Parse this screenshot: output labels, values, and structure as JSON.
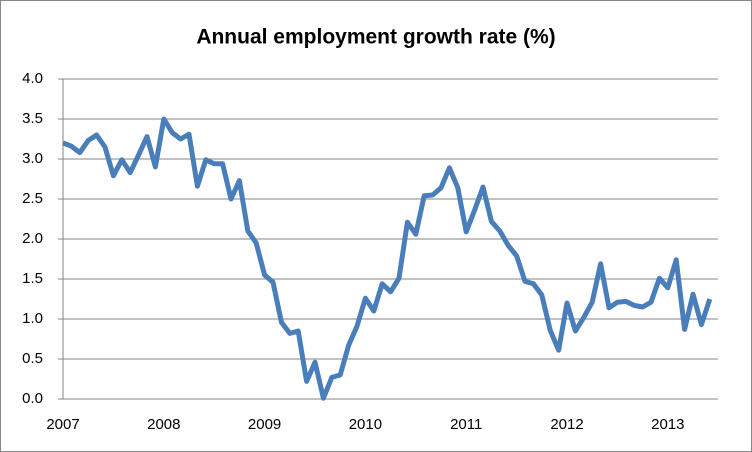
{
  "chart_data": {
    "type": "line",
    "title": "Annual employment growth rate (%)",
    "categories": [
      "2007",
      null,
      null,
      null,
      null,
      null,
      null,
      null,
      null,
      null,
      null,
      null,
      "2008",
      null,
      null,
      null,
      null,
      null,
      null,
      null,
      null,
      null,
      null,
      null,
      "2009",
      null,
      null,
      null,
      null,
      null,
      null,
      null,
      null,
      null,
      null,
      null,
      "2010",
      null,
      null,
      null,
      null,
      null,
      null,
      null,
      null,
      null,
      null,
      null,
      "2011",
      null,
      null,
      null,
      null,
      null,
      null,
      null,
      null,
      null,
      null,
      null,
      "2012",
      null,
      null,
      null,
      null,
      null,
      null,
      null,
      null,
      null,
      null,
      null,
      "2013",
      null,
      null,
      null,
      null,
      null
    ],
    "values": [
      3.2,
      3.16,
      3.08,
      3.23,
      3.3,
      3.15,
      2.79,
      2.99,
      2.83,
      3.05,
      3.28,
      2.9,
      3.5,
      3.33,
      3.25,
      3.31,
      2.66,
      2.99,
      2.94,
      2.94,
      2.5,
      2.73,
      2.1,
      1.95,
      1.55,
      1.46,
      0.96,
      0.82,
      0.85,
      0.22,
      0.46,
      0.01,
      0.27,
      0.3,
      0.67,
      0.91,
      1.26,
      1.1,
      1.44,
      1.34,
      1.51,
      2.21,
      2.06,
      2.54,
      2.55,
      2.64,
      2.89,
      2.64,
      2.09,
      2.36,
      2.65,
      2.22,
      2.1,
      1.92,
      1.79,
      1.47,
      1.44,
      1.3,
      0.86,
      0.61,
      1.2,
      0.85,
      1.02,
      1.21,
      1.69,
      1.14,
      1.21,
      1.22,
      1.17,
      1.15,
      1.21,
      1.51,
      1.39,
      1.74,
      0.87,
      1.31,
      0.93,
      1.25
    ],
    "color": "#4a7ebb",
    "ylim": [
      0,
      4
    ],
    "yticks": [
      {
        "value": 0,
        "label": "0.0"
      },
      {
        "value": 0.5,
        "label": "0.5"
      },
      {
        "value": 1,
        "label": "1.0"
      },
      {
        "value": 1.5,
        "label": "1.5"
      },
      {
        "value": 2,
        "label": "2.0"
      },
      {
        "value": 2.5,
        "label": "2.5"
      },
      {
        "value": 3,
        "label": "3.0"
      },
      {
        "value": 3.5,
        "label": "3.5"
      },
      {
        "value": 4,
        "label": "4.0"
      }
    ],
    "grid": true
  }
}
